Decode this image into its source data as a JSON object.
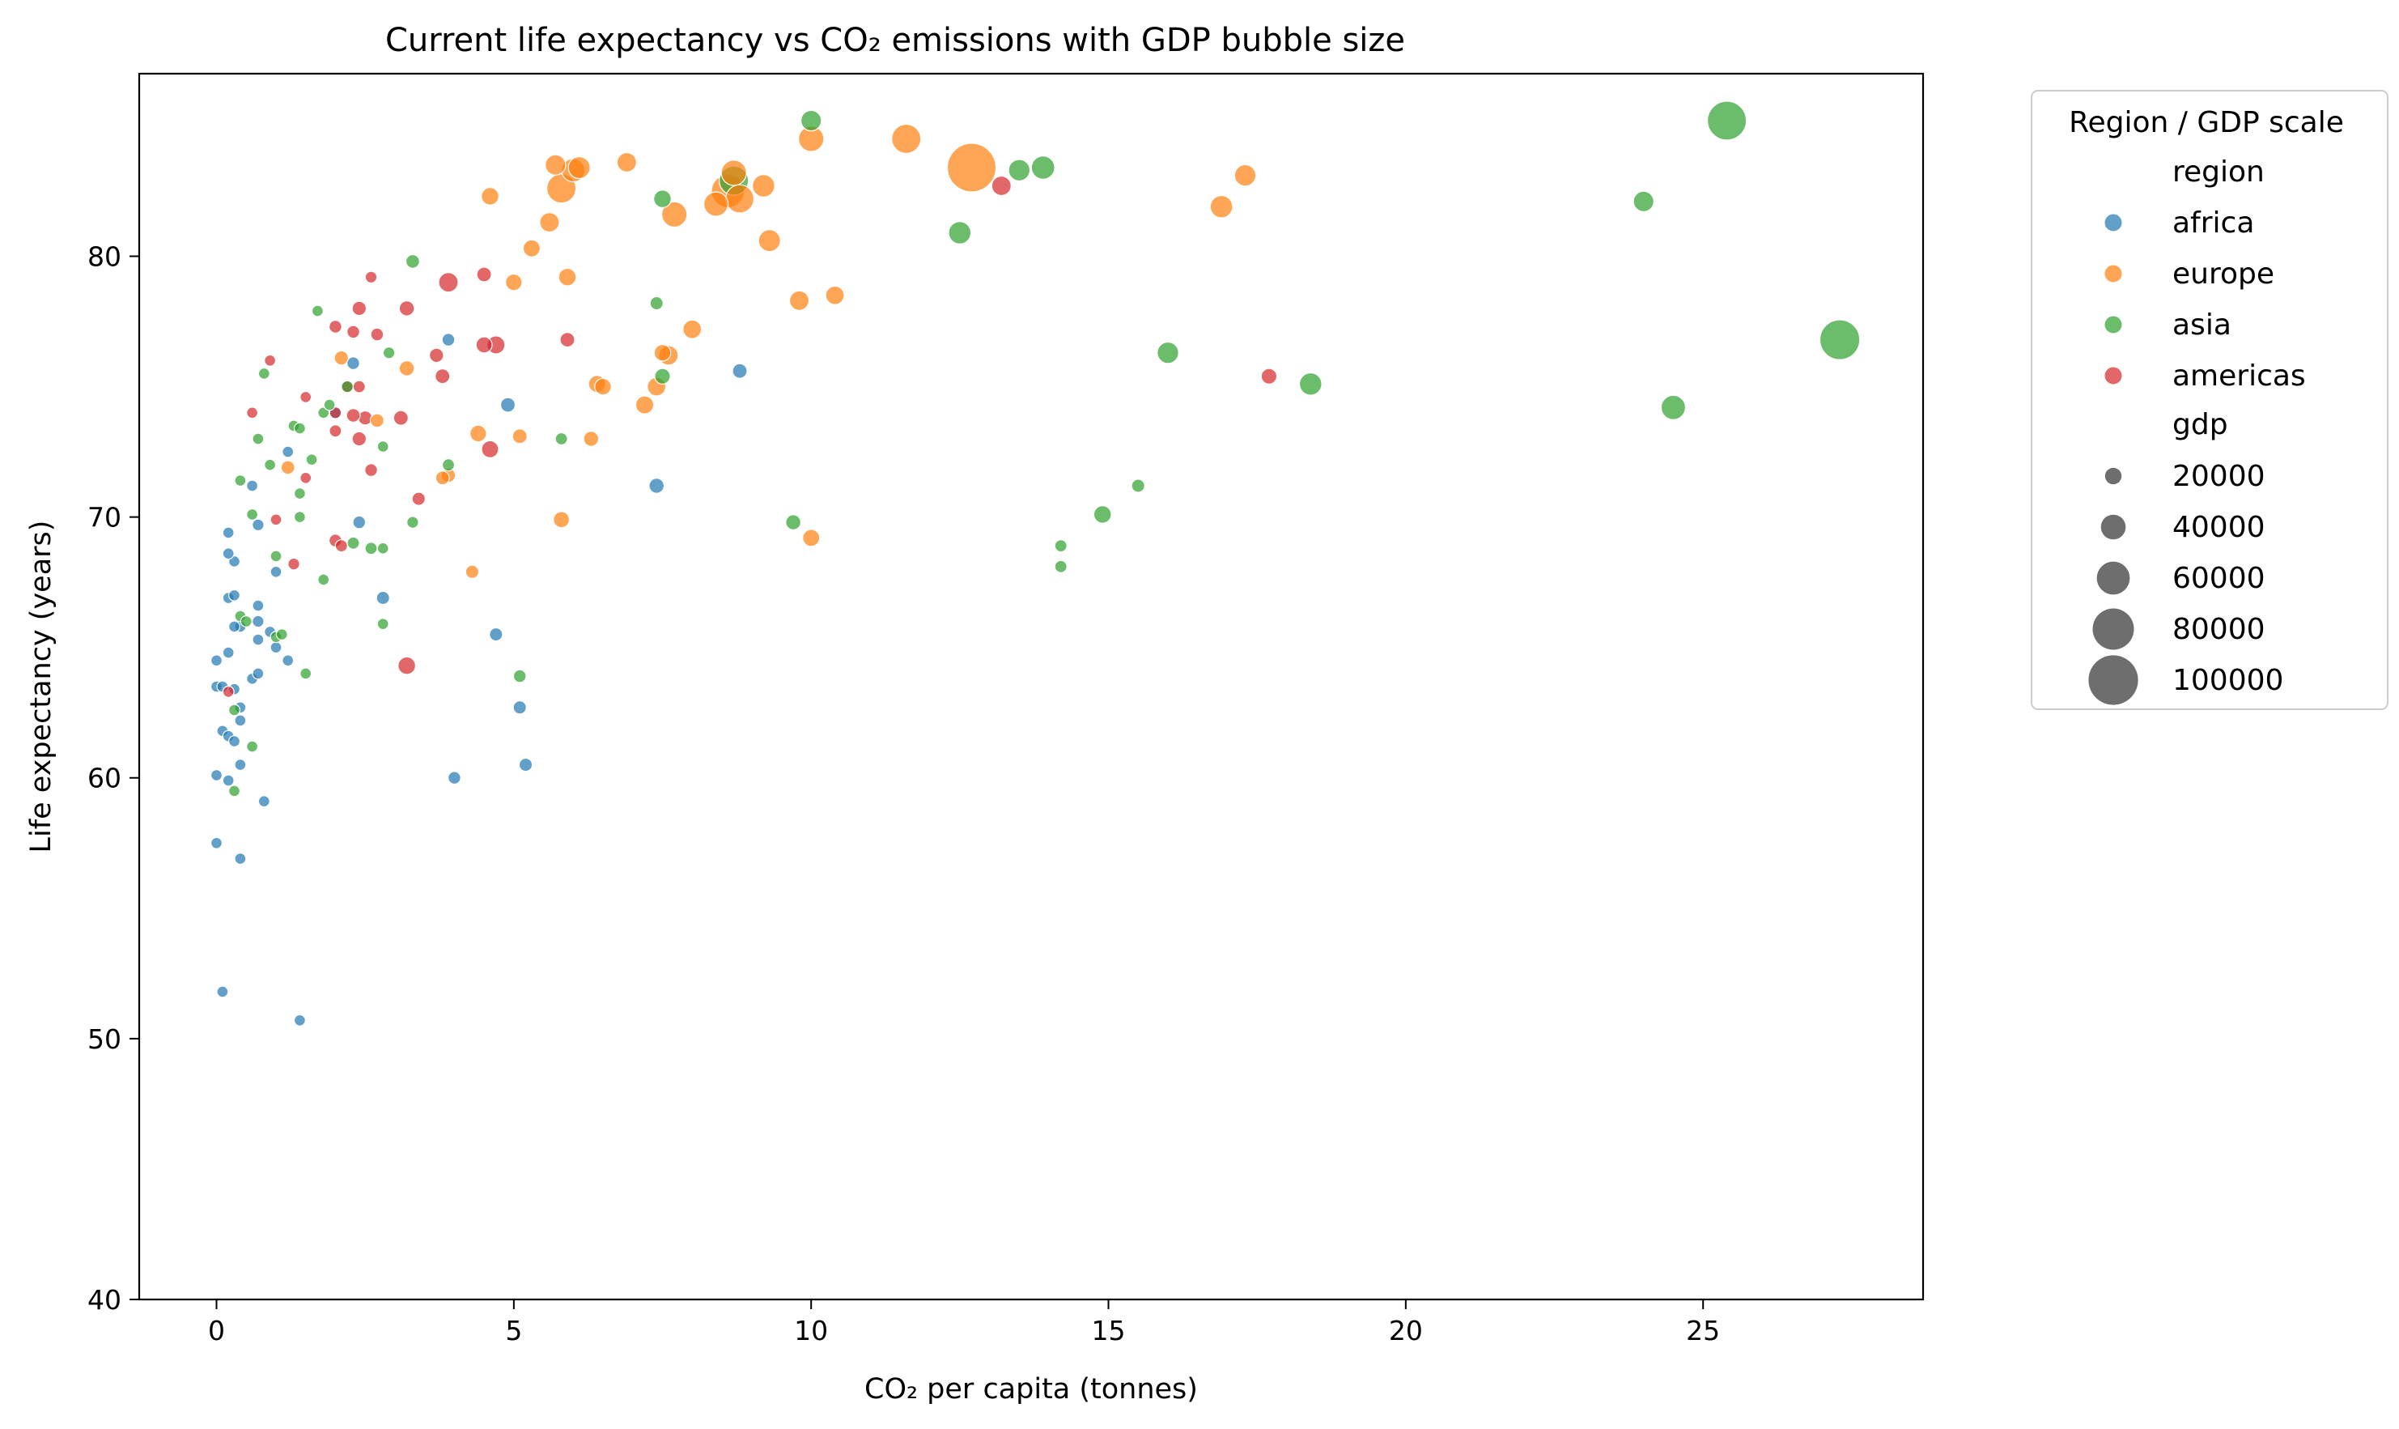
{
  "chart_data": {
    "type": "scatter",
    "title": "Current life expectancy vs CO₂ emissions with GDP bubble size",
    "xlabel": "CO₂ per capita (tonnes)",
    "ylabel": "Life expectancy (years)",
    "xlim": [
      -1.3,
      28.7
    ],
    "ylim": [
      40,
      87
    ],
    "xticks": [
      0,
      5,
      10,
      15,
      20,
      25
    ],
    "yticks": [
      40,
      50,
      60,
      70,
      80
    ],
    "grid": false,
    "legend": {
      "placement": "outside-right",
      "title": "Region / GDP scale",
      "hue_title": "region",
      "size_title": "gdp",
      "size_entries": [
        20000,
        40000,
        60000,
        80000,
        100000
      ]
    },
    "series": [
      {
        "name": "africa",
        "color": "#1f77b4",
        "points": [
          [
            0.1,
            51.8,
            3000
          ],
          [
            1.4,
            50.7,
            3000
          ],
          [
            0.0,
            57.5,
            3000
          ],
          [
            0.4,
            56.9,
            3000
          ],
          [
            0.8,
            59.1,
            3000
          ],
          [
            0.0,
            60.1,
            3000
          ],
          [
            0.2,
            59.9,
            3000
          ],
          [
            0.4,
            60.5,
            3000
          ],
          [
            0.1,
            61.8,
            3000
          ],
          [
            0.2,
            61.6,
            3000
          ],
          [
            0.3,
            61.4,
            3000
          ],
          [
            0.4,
            62.2,
            3000
          ],
          [
            0.4,
            62.7,
            3000
          ],
          [
            0.3,
            63.4,
            3000
          ],
          [
            0.0,
            63.5,
            3000
          ],
          [
            0.1,
            63.5,
            3000
          ],
          [
            0.6,
            63.8,
            3000
          ],
          [
            0.7,
            64.0,
            3000
          ],
          [
            1.2,
            64.5,
            3000
          ],
          [
            0.0,
            64.5,
            3000
          ],
          [
            0.2,
            64.8,
            3000
          ],
          [
            0.4,
            65.8,
            3000
          ],
          [
            0.3,
            65.8,
            3000
          ],
          [
            0.7,
            65.3,
            3000
          ],
          [
            0.7,
            66.0,
            4000
          ],
          [
            0.9,
            65.6,
            3000
          ],
          [
            1.0,
            65.0,
            3000
          ],
          [
            0.7,
            66.6,
            3000
          ],
          [
            0.2,
            66.9,
            3000
          ],
          [
            0.3,
            67.0,
            3000
          ],
          [
            0.3,
            68.3,
            3000
          ],
          [
            0.2,
            68.6,
            3000
          ],
          [
            0.2,
            69.4,
            3000
          ],
          [
            0.7,
            69.7,
            4000
          ],
          [
            1.0,
            67.9,
            3000
          ],
          [
            0.6,
            71.2,
            3000
          ],
          [
            2.4,
            69.8,
            6000
          ],
          [
            2.8,
            66.9,
            7000
          ],
          [
            1.2,
            72.5,
            3000
          ],
          [
            2.0,
            74.0,
            5000
          ],
          [
            2.3,
            75.9,
            6000
          ],
          [
            3.9,
            76.8,
            6000
          ],
          [
            4.7,
            65.5,
            7000
          ],
          [
            5.1,
            62.7,
            7000
          ],
          [
            5.2,
            60.5,
            7000
          ],
          [
            4.0,
            60.0,
            6000
          ],
          [
            4.9,
            74.3,
            10000
          ],
          [
            7.4,
            71.2,
            11000
          ],
          [
            8.8,
            75.6,
            10000
          ]
        ]
      },
      {
        "name": "europe",
        "color": "#ff7f0e",
        "points": [
          [
            1.2,
            71.9,
            8000
          ],
          [
            2.1,
            76.1,
            9000
          ],
          [
            2.7,
            73.7,
            8000
          ],
          [
            3.2,
            75.7,
            11000
          ],
          [
            3.8,
            71.5,
            8000
          ],
          [
            3.9,
            71.6,
            9000
          ],
          [
            4.3,
            67.9,
            7000
          ],
          [
            4.4,
            73.2,
            14000
          ],
          [
            5.8,
            69.9,
            13000
          ],
          [
            6.3,
            73.0,
            11000
          ],
          [
            5.1,
            73.1,
            10000
          ],
          [
            4.6,
            82.3,
            16000
          ],
          [
            5.0,
            79.0,
            14000
          ],
          [
            5.3,
            80.3,
            15000
          ],
          [
            5.6,
            81.3,
            20000
          ],
          [
            5.8,
            82.6,
            40000
          ],
          [
            5.7,
            83.5,
            22000
          ],
          [
            6.0,
            83.3,
            28000
          ],
          [
            6.1,
            83.4,
            25000
          ],
          [
            5.9,
            79.2,
            16000
          ],
          [
            6.4,
            75.1,
            15000
          ],
          [
            6.5,
            75.0,
            14000
          ],
          [
            6.9,
            83.6,
            20000
          ],
          [
            7.2,
            74.3,
            17000
          ],
          [
            7.4,
            75.0,
            18000
          ],
          [
            7.6,
            76.2,
            20000
          ],
          [
            7.7,
            81.6,
            32000
          ],
          [
            8.0,
            77.2,
            18000
          ],
          [
            8.4,
            82.0,
            30000
          ],
          [
            8.6,
            82.5,
            48000
          ],
          [
            8.7,
            83.2,
            32000
          ],
          [
            8.8,
            82.2,
            38000
          ],
          [
            9.2,
            82.7,
            26000
          ],
          [
            9.3,
            80.6,
            25000
          ],
          [
            9.8,
            78.3,
            20000
          ],
          [
            10.0,
            84.5,
            32000
          ],
          [
            10.4,
            78.5,
            18000
          ],
          [
            10.0,
            69.2,
            15000
          ],
          [
            11.6,
            84.5,
            40000
          ],
          [
            12.7,
            83.4,
            80000
          ],
          [
            16.9,
            81.9,
            26000
          ],
          [
            17.3,
            83.1,
            24000
          ],
          [
            7.5,
            76.3,
            14000
          ]
        ]
      },
      {
        "name": "asia",
        "color": "#2ca02c",
        "points": [
          [
            0.3,
            59.5,
            3000
          ],
          [
            0.6,
            61.2,
            3000
          ],
          [
            0.3,
            62.6,
            3000
          ],
          [
            1.5,
            64.0,
            3000
          ],
          [
            0.4,
            66.2,
            3000
          ],
          [
            0.5,
            66.0,
            3000
          ],
          [
            1.0,
            65.4,
            3000
          ],
          [
            1.1,
            65.5,
            3000
          ],
          [
            0.6,
            70.1,
            3000
          ],
          [
            1.0,
            68.5,
            3000
          ],
          [
            1.4,
            70.0,
            3000
          ],
          [
            1.8,
            67.6,
            3000
          ],
          [
            2.8,
            65.9,
            3000
          ],
          [
            2.3,
            69.0,
            5000
          ],
          [
            2.6,
            68.8,
            5000
          ],
          [
            2.8,
            68.8,
            3000
          ],
          [
            3.3,
            69.8,
            4000
          ],
          [
            3.9,
            72.0,
            5000
          ],
          [
            2.8,
            72.7,
            3000
          ],
          [
            1.4,
            70.9,
            3000
          ],
          [
            0.4,
            71.4,
            3000
          ],
          [
            0.7,
            73.0,
            3000
          ],
          [
            0.9,
            72.0,
            3000
          ],
          [
            1.3,
            73.5,
            3000
          ],
          [
            1.4,
            73.4,
            3000
          ],
          [
            1.6,
            72.2,
            3000
          ],
          [
            1.8,
            74.0,
            3000
          ],
          [
            1.9,
            74.3,
            3000
          ],
          [
            2.2,
            75.0,
            4000
          ],
          [
            2.9,
            76.3,
            4000
          ],
          [
            0.8,
            75.5,
            3000
          ],
          [
            1.7,
            77.9,
            3000
          ],
          [
            3.3,
            79.8,
            8000
          ],
          [
            5.1,
            63.9,
            6000
          ],
          [
            5.8,
            73.0,
            5000
          ],
          [
            7.4,
            78.2,
            7000
          ],
          [
            7.5,
            75.4,
            12000
          ],
          [
            7.5,
            82.2,
            16000
          ],
          [
            8.7,
            82.9,
            40000
          ],
          [
            9.7,
            69.8,
            11000
          ],
          [
            10.0,
            85.2,
            22000
          ],
          [
            12.5,
            80.9,
            26000
          ],
          [
            13.5,
            83.3,
            24000
          ],
          [
            13.9,
            83.4,
            28000
          ],
          [
            14.2,
            68.1,
            5000
          ],
          [
            14.2,
            68.9,
            5000
          ],
          [
            14.9,
            70.1,
            16000
          ],
          [
            15.5,
            71.2,
            7000
          ],
          [
            16.0,
            76.3,
            24000
          ],
          [
            18.4,
            75.1,
            26000
          ],
          [
            24.0,
            82.1,
            22000
          ],
          [
            24.5,
            74.2,
            30000
          ],
          [
            25.4,
            85.2,
            60000
          ],
          [
            27.3,
            76.8,
            62000
          ]
        ]
      },
      {
        "name": "americas",
        "color": "#d62728",
        "points": [
          [
            0.2,
            63.3,
            3000
          ],
          [
            1.0,
            69.9,
            3000
          ],
          [
            1.3,
            68.2,
            4000
          ],
          [
            1.5,
            71.5,
            3000
          ],
          [
            2.0,
            69.1,
            6000
          ],
          [
            2.1,
            68.9,
            5000
          ],
          [
            2.0,
            73.3,
            5000
          ],
          [
            2.4,
            73.0,
            9000
          ],
          [
            2.3,
            73.9,
            8000
          ],
          [
            2.5,
            73.8,
            9000
          ],
          [
            2.6,
            71.8,
            6000
          ],
          [
            3.1,
            73.8,
            10000
          ],
          [
            3.4,
            70.7,
            7000
          ],
          [
            3.2,
            64.3,
            16000
          ],
          [
            2.0,
            74.0,
            4000
          ],
          [
            2.2,
            75.0,
            5000
          ],
          [
            2.4,
            75.0,
            5000
          ],
          [
            3.7,
            76.2,
            9000
          ],
          [
            3.8,
            75.4,
            10000
          ],
          [
            4.6,
            72.6,
            15000
          ],
          [
            4.5,
            76.6,
            13000
          ],
          [
            4.7,
            76.6,
            17000
          ],
          [
            5.9,
            76.8,
            10000
          ],
          [
            0.6,
            74.0,
            3000
          ],
          [
            1.5,
            74.6,
            3000
          ],
          [
            0.9,
            76.0,
            3000
          ],
          [
            2.0,
            77.3,
            6000
          ],
          [
            2.3,
            77.1,
            6000
          ],
          [
            2.7,
            77.0,
            6000
          ],
          [
            2.4,
            78.0,
            9000
          ],
          [
            2.6,
            79.2,
            4000
          ],
          [
            3.2,
            78.0,
            11000
          ],
          [
            3.9,
            79.0,
            20000
          ],
          [
            4.5,
            79.3,
            10000
          ],
          [
            13.2,
            82.7,
            20000
          ],
          [
            17.7,
            75.4,
            12000
          ]
        ]
      }
    ]
  }
}
